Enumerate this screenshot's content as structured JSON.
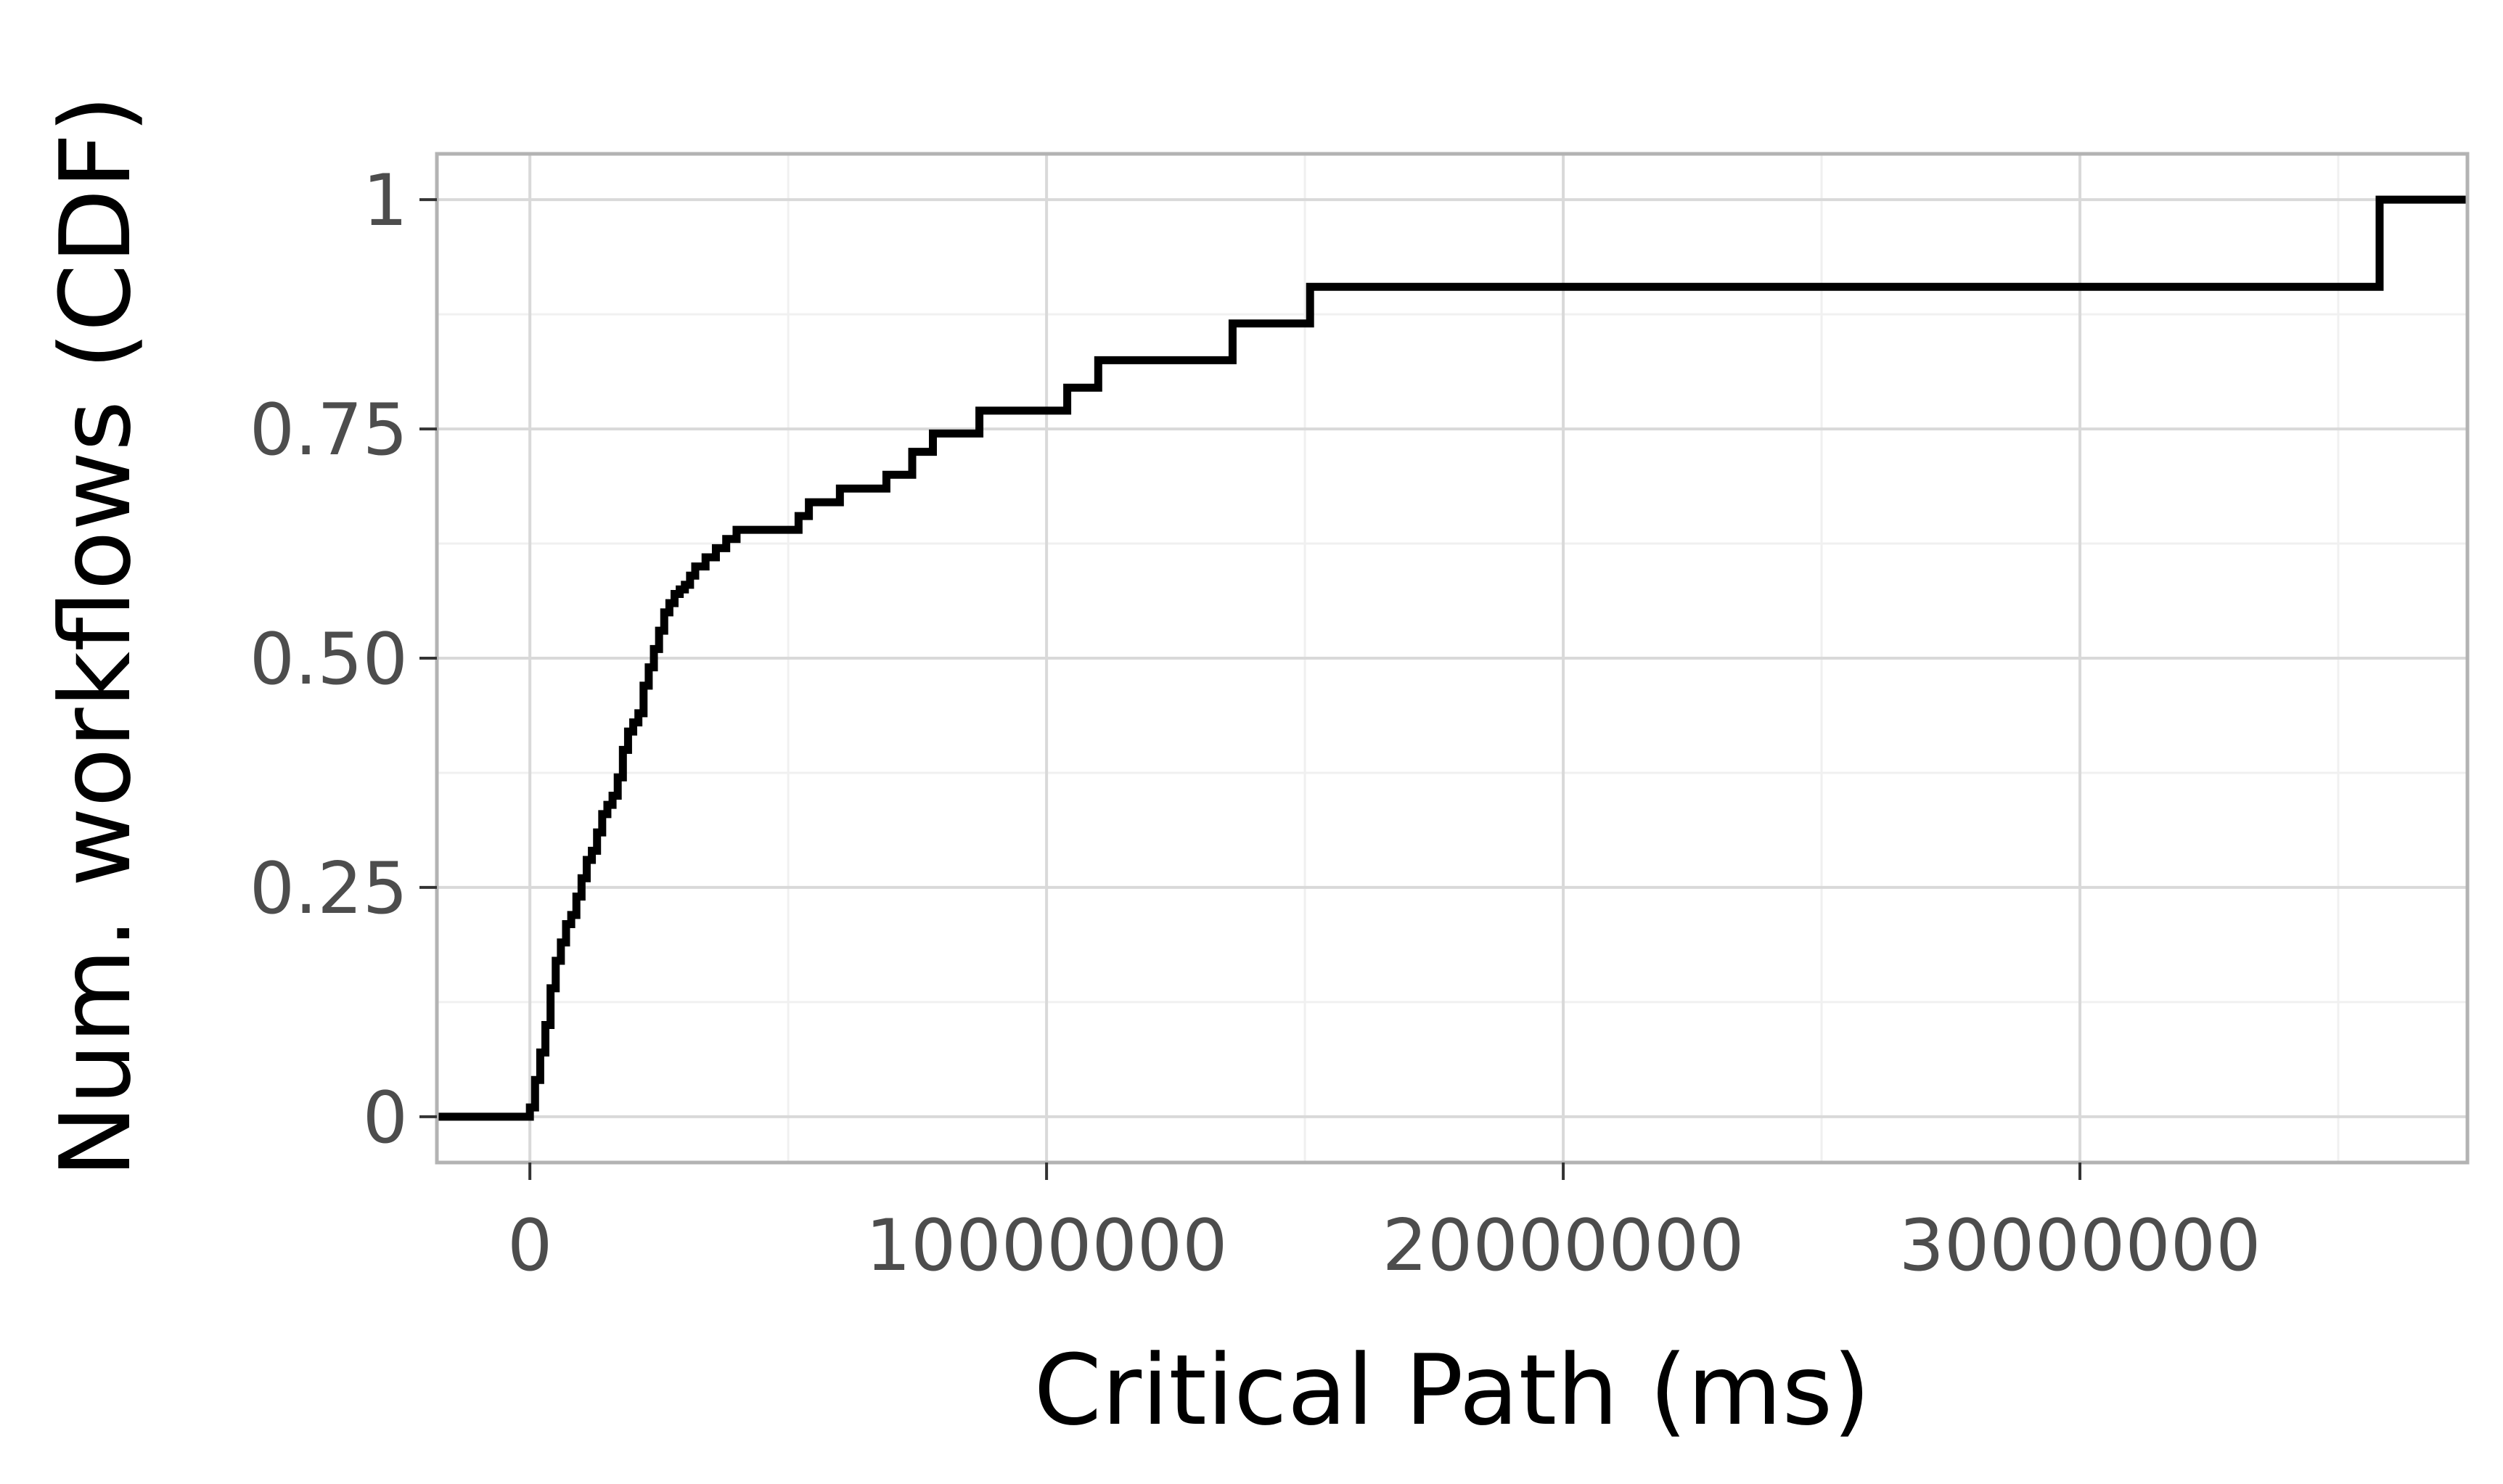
{
  "chart_data": {
    "type": "line",
    "step": true,
    "title": "",
    "xlabel": "Critical Path (ms)",
    "ylabel": "Num. workflows (CDF)",
    "xlim": [
      -1800000,
      37500000
    ],
    "ylim": [
      -0.05,
      1.05
    ],
    "x_ticks": [
      0,
      10000000,
      20000000,
      30000000
    ],
    "x_tick_labels": [
      "0",
      "10000000",
      "20000000",
      "30000000"
    ],
    "y_ticks": [
      0,
      0.25,
      0.5,
      0.75,
      1
    ],
    "y_tick_labels": [
      "0",
      "0.25",
      "0.50",
      "0.75",
      "1"
    ],
    "grid": true,
    "legend": "none",
    "colors": {
      "line": "#000000",
      "grid_major": "#d9d9d9",
      "grid_minor": "#f0f0f0",
      "panel_border": "#b3b3b3",
      "tick_label": "#4d4d4d"
    },
    "series": [
      {
        "x": [
          -1800000,
          0,
          100000,
          200000,
          300000,
          400000,
          500000,
          600000,
          700000,
          800000,
          900000,
          1000000,
          1100000,
          1200000,
          1300000,
          1400000,
          1500000,
          1600000,
          1700000,
          1800000,
          1900000,
          2000000,
          2100000,
          2200000,
          2300000,
          2400000,
          2500000,
          2600000,
          2700000,
          2800000,
          2900000,
          3000000,
          3100000,
          3200000,
          3400000,
          3600000,
          3800000,
          4000000,
          4200000,
          4400000,
          5200000,
          5400000,
          6000000,
          6900000,
          7400000,
          7800000,
          8700000,
          10400000,
          11000000,
          13600000,
          15100000,
          35800000,
          37500000
        ],
        "y": [
          0,
          0.01,
          0.04,
          0.07,
          0.1,
          0.14,
          0.17,
          0.19,
          0.21,
          0.22,
          0.24,
          0.26,
          0.28,
          0.29,
          0.31,
          0.33,
          0.34,
          0.35,
          0.37,
          0.4,
          0.42,
          0.43,
          0.44,
          0.47,
          0.49,
          0.51,
          0.53,
          0.55,
          0.56,
          0.57,
          0.575,
          0.58,
          0.59,
          0.6,
          0.61,
          0.62,
          0.63,
          0.64,
          0.64,
          0.64,
          0.655,
          0.67,
          0.685,
          0.7,
          0.725,
          0.745,
          0.77,
          0.795,
          0.825,
          0.865,
          0.905,
          1.0,
          1.0
        ]
      }
    ]
  }
}
